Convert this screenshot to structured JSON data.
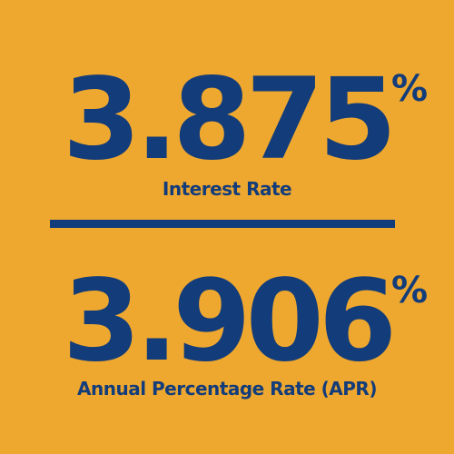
{
  "interest": {
    "value": "3.875",
    "symbol": "%",
    "label": "Interest Rate"
  },
  "apr": {
    "value": "3.906",
    "symbol": "%",
    "label": "Annual Percentage Rate (APR)"
  },
  "colors": {
    "background": "#EEA82F",
    "text": "#133C7A",
    "divider": "#133C7A"
  }
}
